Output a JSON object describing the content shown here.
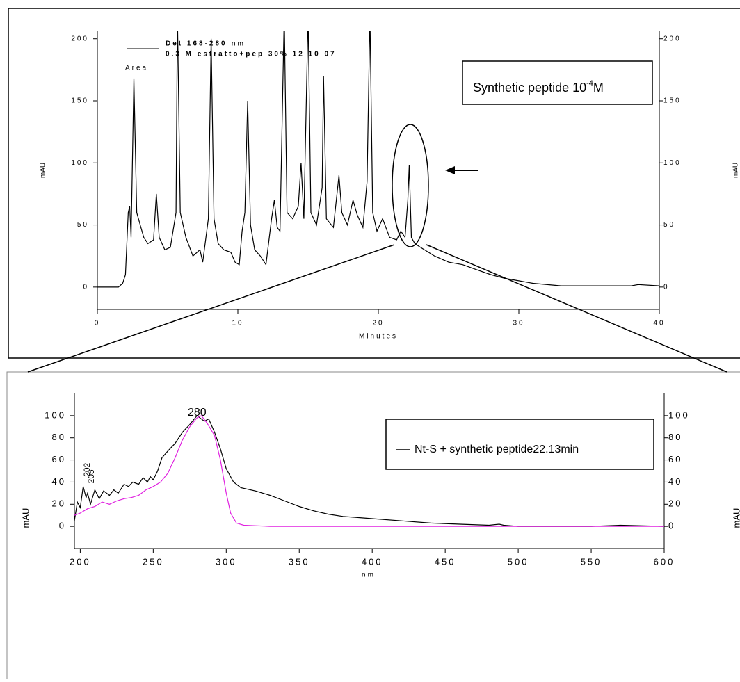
{
  "chart_data": [
    {
      "type": "line",
      "y_label": "mAU",
      "x_label": "Minutes",
      "legend_lines": [
        "Det 168-280 nm",
        "0.3 M estratto+pep 30% 12 10 07"
      ],
      "integration_label": "Area",
      "annotation": {
        "text": "Synthetic peptide 10",
        "superscript": "-4",
        "suffix": "M"
      },
      "xlim": [
        0,
        40
      ],
      "xticks": [
        0,
        10,
        20,
        30,
        40
      ],
      "ylim": [
        -18,
        206
      ],
      "yticks": [
        0,
        50,
        100,
        150,
        200
      ],
      "series": [
        {
          "color": "#000000",
          "x": [
            0,
            1.5,
            1.8,
            2.0,
            2.2,
            2.3,
            2.4,
            2.6,
            2.8,
            3.0,
            3.3,
            3.6,
            4.0,
            4.2,
            4.4,
            4.8,
            5.2,
            5.6,
            5.7,
            5.9,
            6.3,
            6.8,
            7.3,
            7.5,
            7.9,
            8.1,
            8.3,
            8.6,
            9.0,
            9.5,
            9.8,
            10.1,
            10.3,
            10.5,
            10.7,
            10.9,
            11.2,
            11.6,
            12.0,
            12.4,
            12.6,
            12.8,
            13.0,
            13.3,
            13.5,
            13.9,
            14.3,
            14.5,
            14.7,
            15.0,
            15.2,
            15.6,
            16.0,
            16.1,
            16.3,
            16.8,
            17.2,
            17.4,
            17.8,
            18.2,
            18.5,
            18.9,
            19.2,
            19.4,
            19.6,
            19.9,
            20.3,
            20.8,
            21.3,
            21.6,
            21.9,
            22.1,
            22.2,
            22.35,
            22.6,
            23.0,
            24,
            25,
            26,
            27,
            28,
            29,
            30,
            31,
            33,
            35,
            38,
            38.5,
            40
          ],
          "values": [
            0,
            0,
            3,
            10,
            60,
            65,
            40,
            168,
            60,
            52,
            40,
            35,
            38,
            75,
            40,
            30,
            32,
            60,
            220,
            60,
            40,
            25,
            30,
            20,
            55,
            200,
            55,
            35,
            30,
            28,
            20,
            18,
            45,
            60,
            150,
            50,
            30,
            25,
            18,
            55,
            70,
            48,
            45,
            220,
            60,
            55,
            65,
            100,
            55,
            220,
            60,
            50,
            80,
            170,
            55,
            48,
            90,
            60,
            50,
            70,
            58,
            48,
            85,
            220,
            60,
            45,
            55,
            40,
            38,
            45,
            40,
            70,
            98,
            40,
            35,
            32,
            25,
            20,
            18,
            14,
            10,
            7,
            5,
            3,
            1,
            1,
            1,
            2,
            1
          ]
        }
      ]
    },
    {
      "type": "line",
      "y_label": "mAU",
      "x_label": "nm",
      "legend": "Nt-S + synthetic peptide22.13min",
      "peak_labels": [
        280,
        202,
        205
      ],
      "xlim": [
        196,
        600
      ],
      "xticks": [
        200,
        250,
        300,
        350,
        400,
        450,
        500,
        550,
        600
      ],
      "ylim": [
        -20,
        120
      ],
      "yticks": [
        0,
        20,
        40,
        60,
        80,
        100
      ],
      "series": [
        {
          "color": "#000000",
          "x": [
            196,
            198,
            200,
            202,
            204,
            205,
            207,
            210,
            213,
            216,
            220,
            223,
            226,
            230,
            233,
            236,
            240,
            243,
            246,
            248,
            250,
            253,
            256,
            260,
            265,
            270,
            275,
            280,
            285,
            288,
            292,
            296,
            300,
            305,
            310,
            320,
            330,
            340,
            350,
            360,
            370,
            380,
            390,
            400,
            420,
            440,
            460,
            480,
            487,
            490,
            500,
            520,
            550,
            570,
            600
          ],
          "values": [
            5,
            22,
            17,
            36,
            26,
            30,
            20,
            33,
            25,
            32,
            28,
            33,
            30,
            38,
            36,
            40,
            38,
            44,
            40,
            45,
            42,
            50,
            62,
            68,
            75,
            85,
            92,
            100,
            95,
            97,
            85,
            70,
            52,
            40,
            35,
            32,
            28,
            23,
            18,
            14,
            11,
            9,
            8,
            7,
            5,
            3,
            2,
            1,
            2,
            1,
            0,
            0,
            0,
            1,
            0
          ]
        },
        {
          "color": "#e020e0",
          "x": [
            196,
            200,
            205,
            210,
            215,
            220,
            225,
            230,
            235,
            240,
            245,
            250,
            255,
            260,
            265,
            270,
            275,
            280,
            283,
            287,
            292,
            296,
            300,
            303,
            307,
            312,
            330,
            400,
            500,
            600
          ],
          "values": [
            10,
            12,
            16,
            18,
            22,
            20,
            23,
            25,
            26,
            28,
            33,
            36,
            40,
            48,
            62,
            78,
            90,
            98,
            100,
            93,
            82,
            60,
            30,
            12,
            3,
            1,
            0,
            0,
            0,
            0
          ]
        }
      ]
    }
  ]
}
